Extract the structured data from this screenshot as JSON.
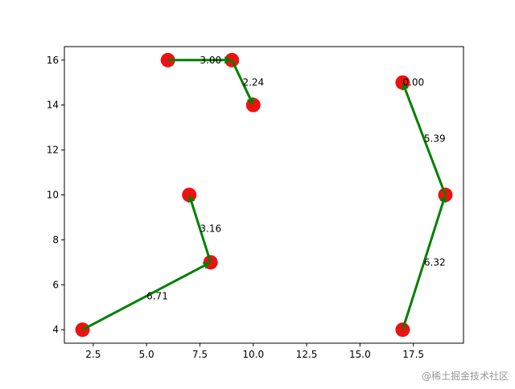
{
  "chart_data": {
    "type": "scatter",
    "x": [
      6,
      9,
      10,
      17,
      19,
      17,
      7,
      8,
      2
    ],
    "y": [
      16,
      16,
      14,
      15,
      10,
      4,
      10,
      7,
      4
    ],
    "color": "#ee1111",
    "arrows": {
      "color": "#008000",
      "x0": [
        6,
        9,
        8,
        2,
        17,
        19,
        17
      ],
      "y0": [
        16,
        16,
        7,
        4,
        4,
        10,
        15
      ],
      "x1": [
        9,
        10,
        7,
        8,
        19,
        17,
        17
      ],
      "y1": [
        16,
        14,
        10,
        7,
        10,
        15,
        15
      ],
      "values": [
        3.0,
        2.24,
        3.16,
        6.71,
        6.32,
        5.39,
        0
      ],
      "value_labels": [
        "3.00",
        "2.24",
        "3.16",
        "6.71",
        "6.32",
        "5.39",
        "0.00"
      ]
    },
    "xlim": [
      1.15,
      19.85
    ],
    "ylim": [
      3.4,
      16.6
    ],
    "xticks": [
      {
        "value": 2.5,
        "label": "2.5"
      },
      {
        "value": 5,
        "label": "5.0"
      },
      {
        "value": 7.5,
        "label": "7.5"
      },
      {
        "value": 10,
        "label": "10.0"
      },
      {
        "value": 12.5,
        "label": "12.5"
      },
      {
        "value": 15,
        "label": "15.0"
      },
      {
        "value": 17.5,
        "label": "17.5"
      }
    ],
    "yticks": [
      4,
      6,
      8,
      10,
      12,
      14,
      16
    ],
    "watermark": "@稀土掘金技术社区"
  }
}
